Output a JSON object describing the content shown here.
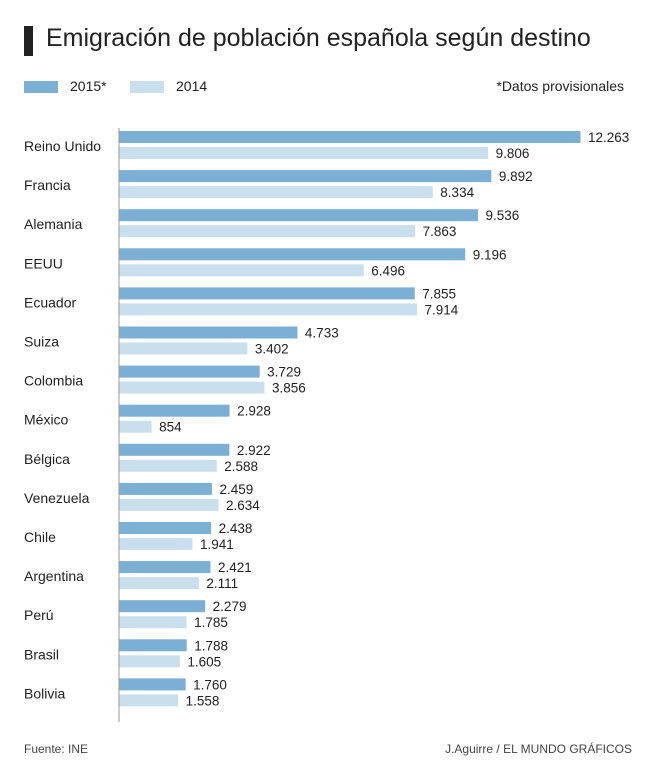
{
  "title": "Emigración de población española según destino",
  "note": "*Datos provisionales",
  "source": "Fuente: INE",
  "credit": "J.Aguirre / EL MUNDO GRÁFICOS",
  "colors": {
    "s2015": "#7bafd4",
    "s2014": "#c9dfee",
    "axis": "#999999"
  },
  "chart_data": {
    "type": "bar",
    "orientation": "horizontal",
    "title": "Emigración de población española según destino",
    "legend_position": "top-left",
    "grid": false,
    "xlim": [
      0,
      12263
    ],
    "categories": [
      "Reino Unido",
      "Francia",
      "Alemania",
      "EEUU",
      "Ecuador",
      "Suiza",
      "Colombia",
      "México",
      "Bélgica",
      "Venezuela",
      "Chile",
      "Argentina",
      "Perú",
      "Brasil",
      "Bolivia"
    ],
    "series": [
      {
        "name": "2015*",
        "values": [
          12263,
          9892,
          9536,
          9196,
          7855,
          4733,
          3729,
          2928,
          2922,
          2459,
          2438,
          2421,
          2279,
          1788,
          1760
        ],
        "labels": [
          "12.263",
          "9.892",
          "9.536",
          "9.196",
          "7.855",
          "4.733",
          "3.729",
          "2.928",
          "2.922",
          "2.459",
          "2.438",
          "2.421",
          "2.279",
          "1.788",
          "1.760"
        ]
      },
      {
        "name": "2014",
        "values": [
          9806,
          8334,
          7863,
          6496,
          7914,
          3402,
          3856,
          854,
          2588,
          2634,
          1941,
          2111,
          1785,
          1605,
          1558
        ],
        "labels": [
          "9.806",
          "8.334",
          "7.863",
          "6.496",
          "7.914",
          "3.402",
          "3.856",
          "854",
          "2.588",
          "2.634",
          "1.941",
          "2.111",
          "1.785",
          "1.605",
          "1.558"
        ]
      }
    ]
  }
}
